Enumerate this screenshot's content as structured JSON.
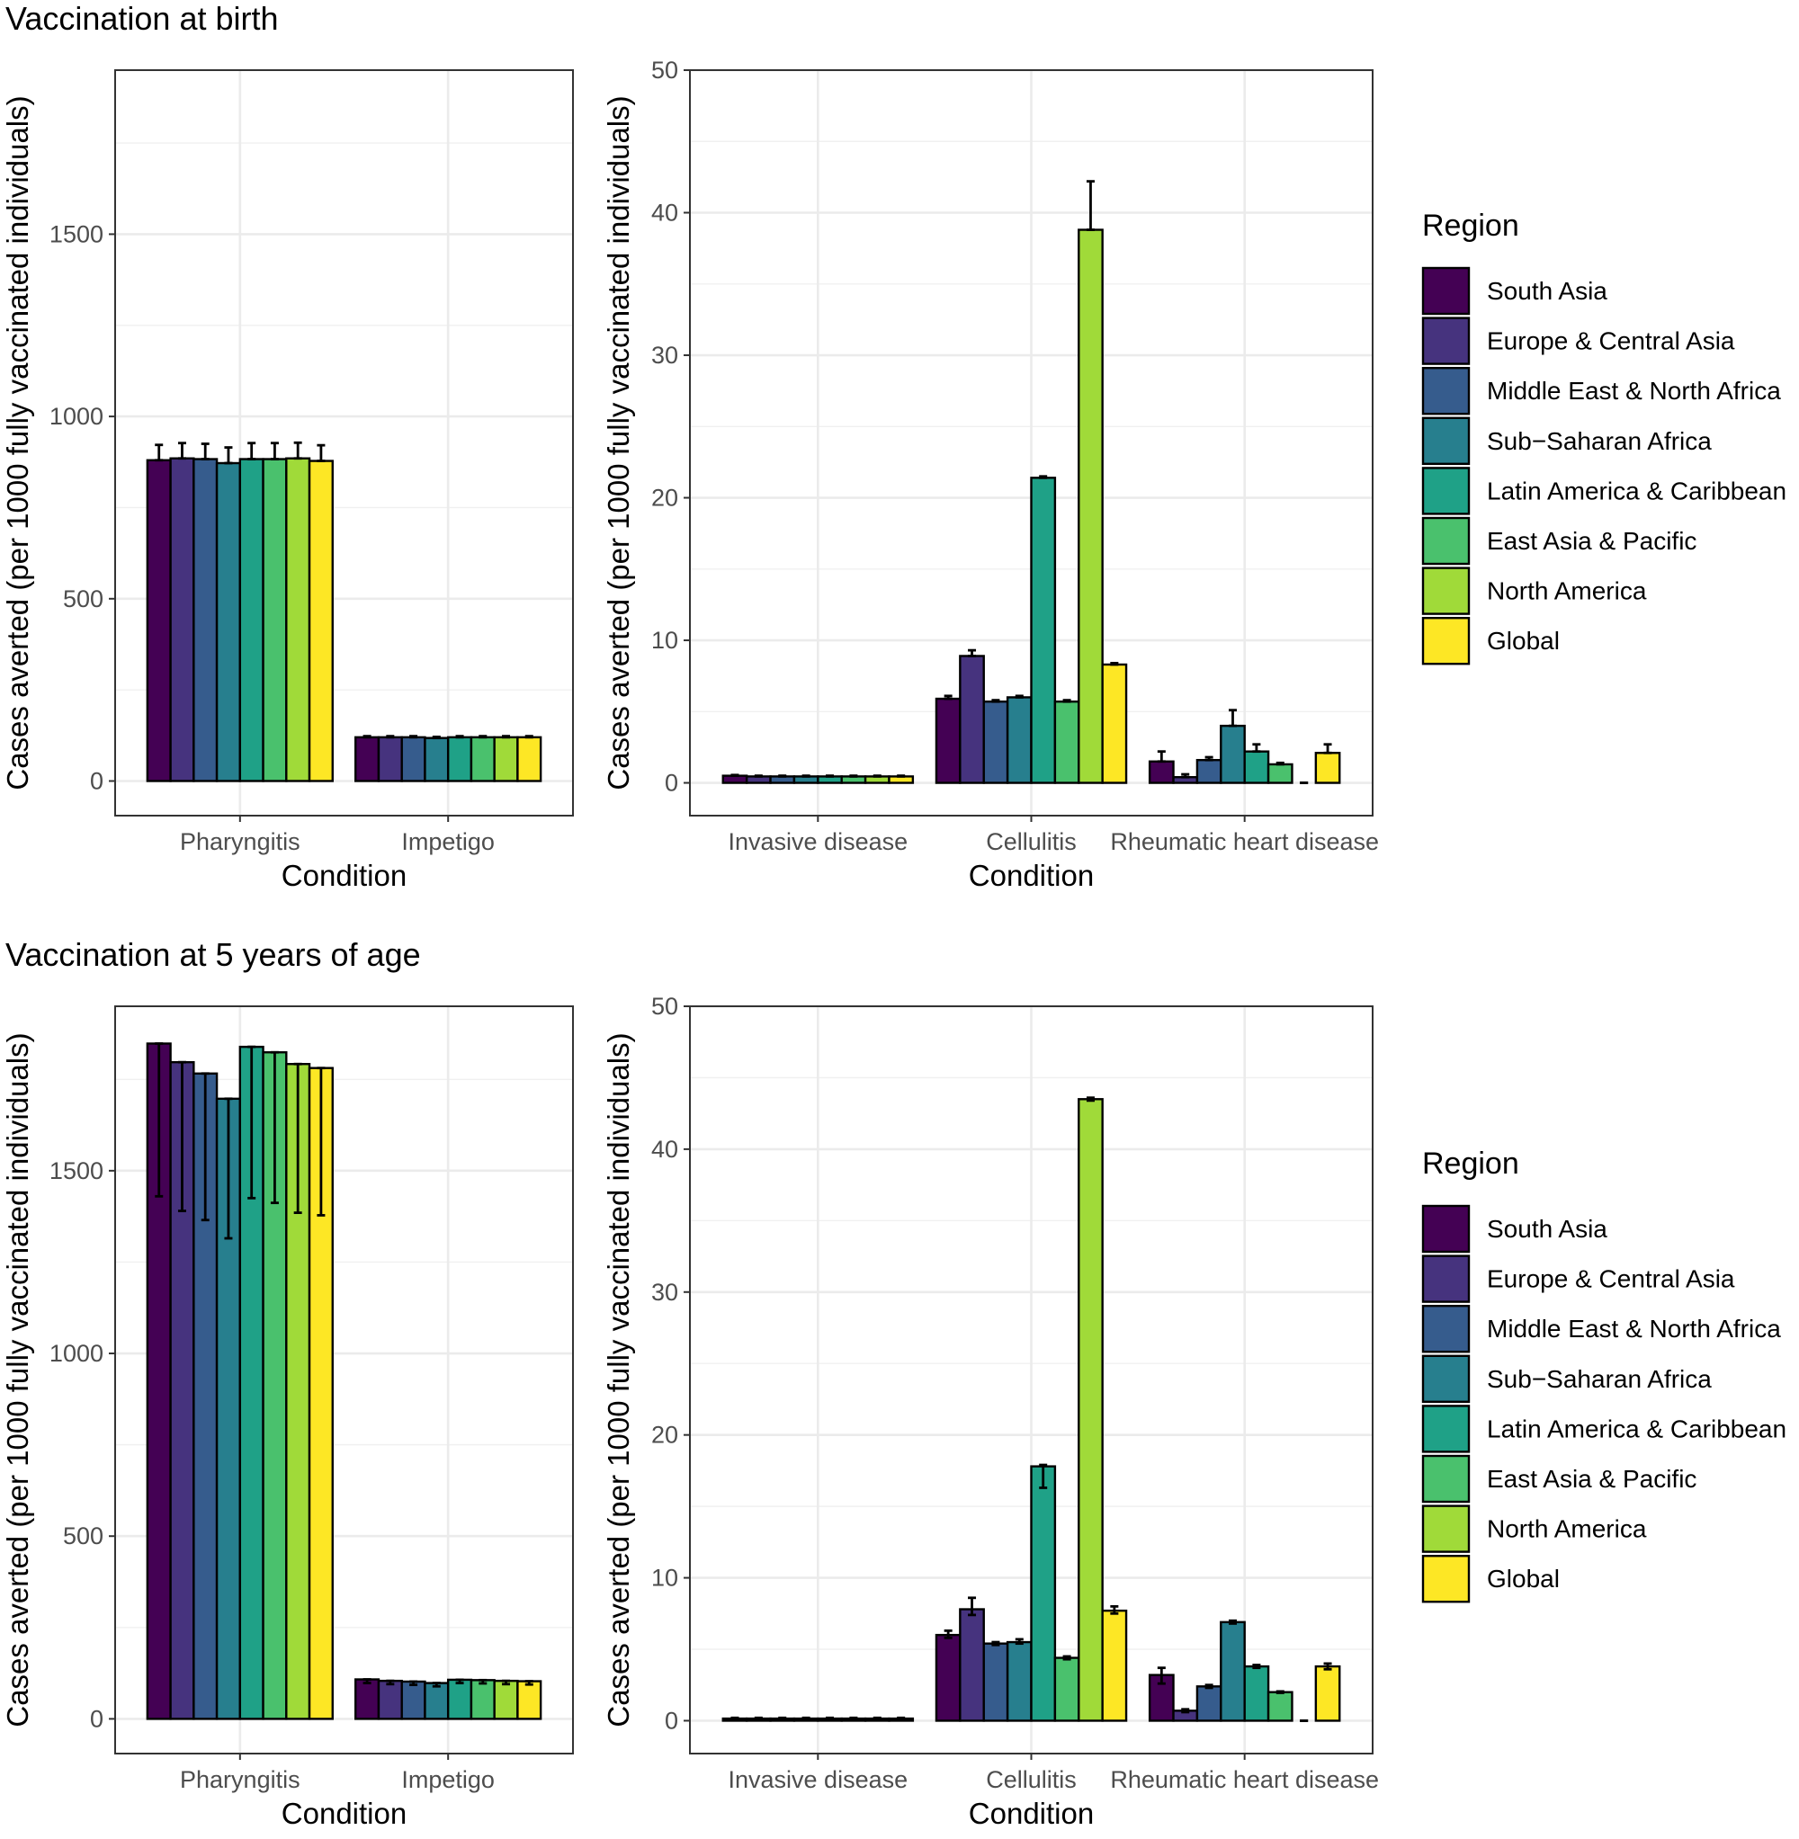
{
  "figure": {
    "sections": [
      {
        "title": "Vaccination at birth"
      },
      {
        "title": "Vaccination at 5 years of age"
      }
    ]
  },
  "legend": {
    "title": "Region",
    "items": [
      {
        "label": "South Asia",
        "color": "#440154"
      },
      {
        "label": "Europe & Central Asia",
        "color": "#46337e"
      },
      {
        "label": "Middle East & North Africa",
        "color": "#365c8d"
      },
      {
        "label": "Sub−Saharan Africa",
        "color": "#277f8e"
      },
      {
        "label": "Latin America & Caribbean",
        "color": "#1fa187"
      },
      {
        "label": "East Asia & Pacific",
        "color": "#4ac16d"
      },
      {
        "label": "North America",
        "color": "#a0da39"
      },
      {
        "label": "Global",
        "color": "#fde725"
      }
    ]
  },
  "chart_data": [
    {
      "type": "bar",
      "section": "Vaccination at birth",
      "categories": [
        "Pharyngitis",
        "Impetigo"
      ],
      "xlabel": "Condition",
      "ylabel": "Cases averted (per 1000 fully vaccinated individuals)",
      "ylim": [
        -95,
        1950
      ],
      "yticks": [
        0,
        500,
        1000,
        1500
      ],
      "ytick_labels": [
        "0",
        "500",
        "1000",
        "1500"
      ],
      "series": [
        {
          "name": "South Asia",
          "values": [
            880,
            120
          ],
          "upper": [
            922,
            123
          ]
        },
        {
          "name": "Europe & Central Asia",
          "values": [
            885,
            120
          ],
          "upper": [
            927,
            123
          ]
        },
        {
          "name": "Middle East & North Africa",
          "values": [
            883,
            120
          ],
          "upper": [
            925,
            123
          ]
        },
        {
          "name": "Sub−Saharan Africa",
          "values": [
            872,
            118
          ],
          "upper": [
            915,
            121
          ]
        },
        {
          "name": "Latin America & Caribbean",
          "values": [
            883,
            120
          ],
          "upper": [
            927,
            123
          ]
        },
        {
          "name": "East Asia & Pacific",
          "values": [
            883,
            120
          ],
          "upper": [
            927,
            123
          ]
        },
        {
          "name": "North America",
          "values": [
            885,
            120
          ],
          "upper": [
            928,
            123
          ]
        },
        {
          "name": "Global",
          "values": [
            878,
            120
          ],
          "upper": [
            921,
            123
          ]
        }
      ]
    },
    {
      "type": "bar",
      "section": "Vaccination at birth",
      "categories": [
        "Invasive disease",
        "Cellulitis",
        "Rheumatic heart disease"
      ],
      "xlabel": "Condition",
      "ylabel": "Cases averted (per 1000 fully vaccinated individuals)",
      "ylim": [
        -2.3,
        50
      ],
      "yticks": [
        0,
        10,
        20,
        30,
        40,
        50
      ],
      "ytick_labels": [
        "0",
        "10",
        "20",
        "30",
        "40",
        "50"
      ],
      "series": [
        {
          "name": "South Asia",
          "values": [
            0.5,
            5.9,
            1.5
          ],
          "upper": [
            0.55,
            6.1,
            2.2
          ]
        },
        {
          "name": "Europe & Central Asia",
          "values": [
            0.45,
            8.9,
            0.4
          ],
          "upper": [
            0.5,
            9.3,
            0.6
          ]
        },
        {
          "name": "Middle East & North Africa",
          "values": [
            0.45,
            5.7,
            1.6
          ],
          "upper": [
            0.5,
            5.8,
            1.8
          ]
        },
        {
          "name": "Sub−Saharan Africa",
          "values": [
            0.45,
            6.0,
            4.0
          ],
          "upper": [
            0.5,
            6.1,
            5.1
          ]
        },
        {
          "name": "Latin America & Caribbean",
          "values": [
            0.45,
            21.4,
            2.2
          ],
          "upper": [
            0.5,
            21.5,
            2.7
          ]
        },
        {
          "name": "East Asia & Pacific",
          "values": [
            0.45,
            5.7,
            1.3
          ],
          "upper": [
            0.5,
            5.8,
            1.4
          ]
        },
        {
          "name": "North America",
          "values": [
            0.45,
            38.8,
            0.0
          ],
          "upper": [
            0.5,
            42.2,
            0.0
          ]
        },
        {
          "name": "Global",
          "values": [
            0.45,
            8.3,
            2.1
          ],
          "upper": [
            0.5,
            8.4,
            2.7
          ]
        }
      ]
    },
    {
      "type": "bar",
      "section": "Vaccination at 5 years of age",
      "categories": [
        "Pharyngitis",
        "Impetigo"
      ],
      "xlabel": "Condition",
      "ylabel": "Cases averted (per 1000 fully vaccinated individuals)",
      "ylim": [
        -95,
        1950
      ],
      "yticks": [
        0,
        500,
        1000,
        1500
      ],
      "ytick_labels": [
        "0",
        "500",
        "1000",
        "1500"
      ],
      "series": [
        {
          "name": "South Asia",
          "values": [
            1848,
            108
          ],
          "lower": [
            1430,
            98
          ]
        },
        {
          "name": "Europe & Central Asia",
          "values": [
            1797,
            104
          ],
          "lower": [
            1390,
            95
          ]
        },
        {
          "name": "Middle East & North Africa",
          "values": [
            1766,
            102
          ],
          "lower": [
            1365,
            93
          ]
        },
        {
          "name": "Sub−Saharan Africa",
          "values": [
            1697,
            98
          ],
          "lower": [
            1315,
            89
          ]
        },
        {
          "name": "Latin America & Caribbean",
          "values": [
            1839,
            107
          ],
          "lower": [
            1425,
            98
          ]
        },
        {
          "name": "East Asia & Pacific",
          "values": [
            1824,
            106
          ],
          "lower": [
            1412,
            97
          ]
        },
        {
          "name": "North America",
          "values": [
            1792,
            104
          ],
          "lower": [
            1385,
            95
          ]
        },
        {
          "name": "Global",
          "values": [
            1781,
            103
          ],
          "lower": [
            1378,
            94
          ]
        }
      ]
    },
    {
      "type": "bar",
      "section": "Vaccination at 5 years of age",
      "categories": [
        "Invasive disease",
        "Cellulitis",
        "Rheumatic heart disease"
      ],
      "xlabel": "Condition",
      "ylabel": "Cases averted (per 1000 fully vaccinated individuals)",
      "ylim": [
        -2.3,
        50
      ],
      "yticks": [
        0,
        10,
        20,
        30,
        40,
        50
      ],
      "ytick_labels": [
        "0",
        "10",
        "20",
        "30",
        "40",
        "50"
      ],
      "series": [
        {
          "name": "South Asia",
          "values": [
            0.15,
            6.0,
            3.2
          ],
          "lower": [
            0.1,
            5.8,
            2.6
          ],
          "upper": [
            0.2,
            6.3,
            3.7
          ]
        },
        {
          "name": "Europe & Central Asia",
          "values": [
            0.15,
            7.8,
            0.7
          ],
          "lower": [
            0.1,
            7.4,
            0.6
          ],
          "upper": [
            0.2,
            8.6,
            0.8
          ]
        },
        {
          "name": "Middle East & North Africa",
          "values": [
            0.15,
            5.4,
            2.4
          ],
          "lower": [
            0.1,
            5.3,
            2.3
          ],
          "upper": [
            0.2,
            5.5,
            2.5
          ]
        },
        {
          "name": "Sub−Saharan Africa",
          "values": [
            0.15,
            5.5,
            6.9
          ],
          "lower": [
            0.1,
            5.4,
            6.8
          ],
          "upper": [
            0.2,
            5.7,
            7.0
          ]
        },
        {
          "name": "Latin America & Caribbean",
          "values": [
            0.15,
            17.8,
            3.8
          ],
          "lower": [
            0.1,
            16.3,
            3.7
          ],
          "upper": [
            0.2,
            17.9,
            3.9
          ]
        },
        {
          "name": "East Asia & Pacific",
          "values": [
            0.15,
            4.4,
            2.0
          ],
          "lower": [
            0.1,
            4.3,
            1.95
          ],
          "upper": [
            0.2,
            4.5,
            2.05
          ]
        },
        {
          "name": "North America",
          "values": [
            0.15,
            43.5,
            0.0
          ],
          "lower": [
            0.1,
            43.4,
            0.0
          ],
          "upper": [
            0.2,
            43.6,
            0.0
          ]
        },
        {
          "name": "Global",
          "values": [
            0.15,
            7.7,
            3.8
          ],
          "lower": [
            0.1,
            7.5,
            3.6
          ],
          "upper": [
            0.2,
            8.0,
            4.0
          ]
        }
      ]
    }
  ]
}
